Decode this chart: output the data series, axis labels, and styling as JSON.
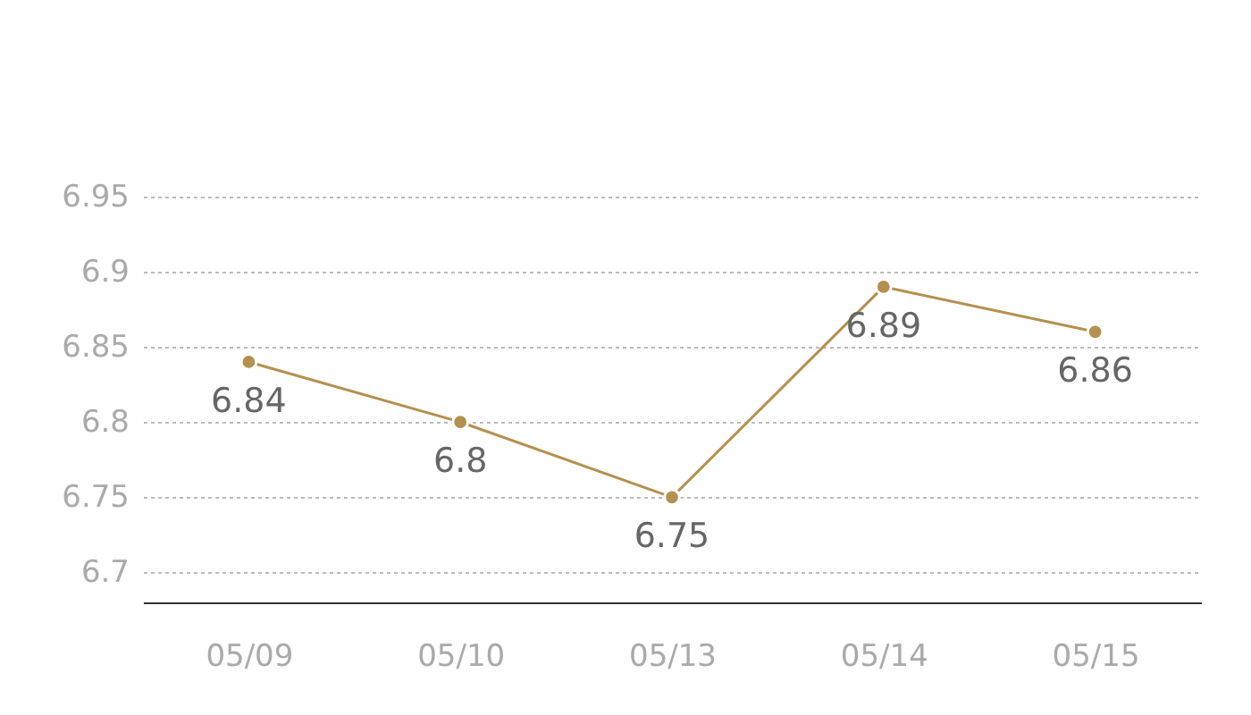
{
  "chart_data": {
    "type": "line",
    "categories": [
      "05/09",
      "05/10",
      "05/13",
      "05/14",
      "05/15"
    ],
    "series": [
      {
        "color": "#b5904f",
        "values": [
          6.84,
          6.8,
          6.75,
          6.89,
          6.86
        ]
      }
    ],
    "ylim": [
      6.68,
      6.95
    ],
    "yticks": [
      6.7,
      6.75,
      6.8,
      6.85,
      6.9,
      6.95
    ],
    "grid": "y",
    "marker": "circle",
    "data_labels": true,
    "legend": false
  }
}
